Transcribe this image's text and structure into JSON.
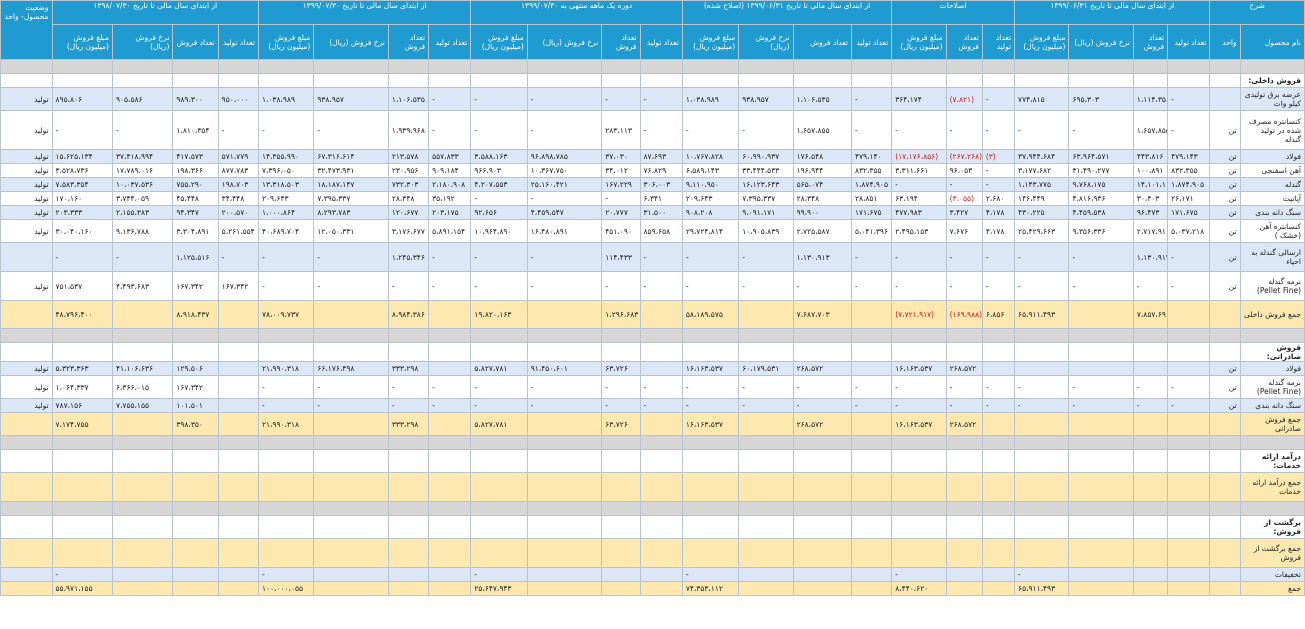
{
  "header": {
    "groups": [
      "شرح",
      "از ابتدای سال مالی تا تاریخ ۱۳۹۹/۰۶/۳۱",
      "اصلاحات",
      "از ابتدای سال مالی تا تاریخ ۱۳۹۹/۰۶/۳۱ (اصلاح شده)",
      "دوره یک ماهه منتهی به ۱۳۹۹/۰۷/۳۰",
      "از ابتدای سال مالی تا تاریخ ۱۳۹۹/۰۷/۳۰",
      "از ابتدای سال مالی تا تاریخ ۱۳۹۸/۰۷/۳۰",
      "وضعیت محصول- واحد"
    ],
    "desc_sub": [
      "نام محصول",
      "واحد"
    ],
    "period_sub": [
      "تعداد تولید",
      "تعداد فروش",
      "نرخ فروش (ریال)",
      "مبلغ فروش (میلیون ریال)"
    ],
    "adj_sub": [
      "تعداد تولید",
      "تعداد فروش",
      "مبلغ فروش (میلیون ریال)"
    ]
  },
  "rows": [
    {
      "type": "gray",
      "name": "",
      "unit": "",
      "p1": [
        "",
        "",
        "",
        ""
      ],
      "adj": [
        "",
        "",
        ""
      ],
      "p2": [
        "",
        "",
        "",
        ""
      ],
      "p3": [
        "",
        "",
        "",
        ""
      ],
      "p4": [
        "",
        "",
        "",
        ""
      ],
      "p5": [
        "",
        "",
        "",
        ""
      ],
      "status": ""
    },
    {
      "type": "section",
      "name": "فروش داخلی:",
      "unit": "",
      "p1": [
        "",
        "",
        "",
        ""
      ],
      "adj": [
        "",
        "",
        ""
      ],
      "p2": [
        "",
        "",
        "",
        ""
      ],
      "p3": [
        "",
        "",
        "",
        ""
      ],
      "p4": [
        "",
        "",
        "",
        ""
      ],
      "p5": [
        "",
        "",
        "",
        ""
      ],
      "status": ""
    },
    {
      "type": "blue",
      "h": "tall",
      "name": "عرضه برق تولیدی کیلو وات",
      "unit": "",
      "p1": [
        "-",
        "۱،۱۱۴،۳۵۶",
        "۶۹۵،۳۰۳",
        "۷۷۴،۸۱۵"
      ],
      "adj": [
        "-",
        "(۷،۸۲۱)",
        "۳۶۴،۱۷۴"
      ],
      "p2": [
        "-",
        "۱،۱۰۶،۵۳۵",
        "۹۳۸،۹۵۷",
        "۱،۰۳۸،۹۸۹"
      ],
      "p3": [
        "-",
        "-",
        "-",
        "-"
      ],
      "p4": [
        "-",
        "۱،۱۰۶،۵۳۵",
        "۹۳۸،۹۵۷",
        "۱،۰۳۸،۹۸۹"
      ],
      "p5": [
        "۹۵۰،۰۰۰",
        "۹۸۹،۳۰۰",
        "۹۰۵،۵۸۶",
        "۸۹۵،۸۰۶"
      ],
      "status": "تولید"
    },
    {
      "type": "white",
      "h": "xl",
      "name": "کنسانتره مصرف شده در تولید گندله",
      "unit": "تن",
      "p1": [
        "-",
        "۱،۶۵۷،۸۵۵",
        "-",
        "-"
      ],
      "adj": [
        "-",
        "-",
        "-"
      ],
      "p2": [
        "-",
        "۱،۶۵۷،۸۵۵",
        "-",
        "-"
      ],
      "p3": [
        "-",
        "۲۸۳،۱۱۳",
        "-",
        "-"
      ],
      "p4": [
        "-",
        "۱،۹۳۹،۹۶۸",
        "-",
        "-"
      ],
      "p5": [
        "-",
        "۱،۸۱۰،۳۵۴",
        "-",
        "-"
      ],
      "status": "تولید"
    },
    {
      "type": "blue",
      "name": "فولاد",
      "unit": "تن",
      "p1": [
        "۴۷۹،۱۴۳",
        "۴۴۳،۸۱۶",
        "۶۳،۹۶۴،۵۷۱",
        "۳۷،۹۴۴،۶۸۴"
      ],
      "adj": [
        "(۳)",
        "(۲۶۷،۲۶۸)",
        "(۱۷،۱۷۶،۸۵۶)"
      ],
      "p2": [
        "۴۷۹،۱۴۰",
        "۱۷۶،۵۴۸",
        "۶۰،۹۹۰،۹۳۷",
        "۱۰،۷۶۷،۸۲۸"
      ],
      "p3": [
        "۸۷،۶۹۳",
        "۳۷،۰۳۰",
        "۹۶،۸۹۸،۷۸۵",
        "۳،۵۸۸،۱۶۳"
      ],
      "p4": [
        "۵۵۷،۸۳۳",
        "۲۱۳،۵۷۸",
        "۶۷،۳۱۶،۶۱۴",
        "۱۴،۳۵۵،۹۹۰"
      ],
      "p5": [
        "۵۷۱،۷۷۹",
        "۴۱۷،۵۷۳",
        "۳۷،۴۱۸،۹۹۴",
        "۱۵،۶۲۵،۱۳۴"
      ],
      "status": "تولید"
    },
    {
      "type": "white",
      "name": "آهن اسفنجی",
      "unit": "تن",
      "p1": [
        "۸۳۲،۳۵۵",
        "۱۰۰،۸۹۱",
        "۳۱،۴۹۰،۲۷۷",
        "۳،۱۷۷،۶۸۲"
      ],
      "adj": [
        "-",
        "۹۶،۰۵۳",
        "۳،۳۱۱،۶۶۱"
      ],
      "p2": [
        "۸۳۲،۳۵۵",
        "۱۹۶،۹۴۴",
        "۳۳،۴۴۴،۵۳۳",
        "۶،۵۸۹،۱۴۳"
      ],
      "p3": [
        "۷۶،۸۲۹",
        "۳۴،۰۱۲",
        "۱۰،۳۶۷،۷۵۰",
        "۹۶۶،۹۰۳"
      ],
      "p4": [
        "۹۰۹،۱۸۴",
        "۲۳۰،۹۵۶",
        "۳۲،۴۷۳،۹۳۱",
        "۷،۳۹۶،۰۵۰"
      ],
      "p5": [
        "۸۷۷،۷۸۳",
        "۱۹۸،۳۶۶",
        "۱۷،۷۸۹،۰۱۶",
        "۳،۵۲۸،۷۳۶"
      ],
      "status": "تولید"
    },
    {
      "type": "blue",
      "name": "گندله",
      "unit": "تن",
      "p1": [
        "۱،۸۷۴،۹۰۵",
        "۱۴،۱۰۱،۱۱۸",
        "۹،۷۶۸،۱۷۵",
        "۱،۱۴۳،۷۷۵"
      ],
      "adj": [
        "-",
        "-",
        "-"
      ],
      "p2": [
        "۱،۸۷۴،۹۰۵",
        "۵۶۵،۰۷۴",
        "۱۶،۱۲۳،۶۴۳",
        "۹،۱۱۰،۹۵۰"
      ],
      "p3": [
        "۳۰۶،۰۰۳",
        "۱۶۷،۲۲۹",
        "۲۵،۱۶۰،۴۲۱",
        "۴،۲۰۷،۵۵۳"
      ],
      "p4": [
        "۲،۱۸۰،۹۰۸",
        "۷۳۲،۳۰۳",
        "۱۸،۱۸۷،۱۴۷",
        "۱۳،۳۱۸،۵۰۳"
      ],
      "p5": [
        "۱۹۸،۷۰۳",
        "۷۵۵،۲۹۰",
        "۱۰،۰۳۷،۵۳۶",
        "۷،۵۸۳،۳۵۴"
      ],
      "status": "تولید"
    },
    {
      "type": "white",
      "name": "آپاتیت",
      "unit": "تن",
      "p1": [
        "۲۶،۱۷۱",
        "۳۰،۴۰۳",
        "۴،۸۱۶،۹۳۶",
        "۱۴۶،۴۴۹"
      ],
      "adj": [
        "۲،۶۸۰",
        "(۳،۰۵۵)",
        "۶۳،۱۹۴"
      ],
      "p2": [
        "۲۸،۸۵۱",
        "۲۸،۳۴۸",
        "۷،۳۹۵،۳۳۷",
        "۲۰۹،۶۴۳"
      ],
      "p3": [
        "۶،۳۴۱",
        "-",
        "-",
        "-"
      ],
      "p4": [
        "۳۵،۱۹۲",
        "۲۸،۳۴۸",
        "۷،۳۹۵،۳۳۷",
        "۲۰۹،۶۴۳"
      ],
      "p5": [
        "۳۴،۴۴۸",
        "۴۵،۴۴۸",
        "۳،۷۴۴،۰۵۹",
        "۱۷۰،۱۶۰"
      ],
      "status": "تولید"
    },
    {
      "type": "blue",
      "name": "سنگ دانه بندی",
      "unit": "تن",
      "p1": [
        "۱۷۱،۶۷۵",
        "۹۶،۴۷۳",
        "۴،۴۵۹،۵۳۸",
        "۴۳۰،۲۲۵"
      ],
      "adj": [
        "۴،۱۷۸",
        "۳،۴۲۷",
        "۴۷۷،۹۸۳"
      ],
      "p2": [
        "۱۷۱،۶۷۵",
        "۹۹،۹۰۰",
        "۹،۰۹۱،۱۷۱",
        "۹۰۸،۲۰۸"
      ],
      "p3": [
        "۳۱،۵۰۰",
        "۲۰،۷۷۷",
        "۴،۴۵۹،۵۴۷",
        "۹۲،۶۵۶"
      ],
      "p4": [
        "۲۰۳،۱۷۵",
        "۱۲۰،۶۷۷",
        "۸،۲۹۳،۷۸۳",
        "۱،۰۰۰،۸۶۴"
      ],
      "p5": [
        "۲۰۰،۵۷۰",
        "۹۴،۳۴۷",
        "۲،۱۵۵،۳۸۳",
        "۲۰۳،۳۳۳"
      ],
      "status": "تولید"
    },
    {
      "type": "white",
      "h": "tall",
      "name": "کنسانتره آهن (خشک )",
      "unit": "تن",
      "p1": [
        "۵،۰۳۷،۲۱۸",
        "۲،۷۱۷،۹۱۱",
        "۹،۳۵۶،۳۳۶",
        "۲۵،۴۲۹،۶۶۳"
      ],
      "adj": [
        "۴،۱۷۸",
        "۷،۶۷۶",
        "۲،۴۹۵،۱۵۳"
      ],
      "p2": [
        "۵،۰۴۱،۳۹۶",
        "۲،۷۲۵،۵۸۷",
        "۱۰،۹۰۵،۸۳۹",
        "۲۹،۷۲۴،۸۱۴"
      ],
      "p3": [
        "۸۵۹،۶۵۸",
        "۴۵۱،۰۹۰",
        "۱۶،۴۸۰،۸۹۱",
        "۱۰،۹۶۴،۸۹۰"
      ],
      "p4": [
        "۵،۸۹۱،۱۵۴",
        "۳،۱۷۶،۶۷۷",
        "۱۲،۰۵۰،۳۳۱",
        "۴۰،۶۸۹،۷۰۴"
      ],
      "p5": [
        "۵،۲۶۱،۵۵۴",
        "۳،۳۰۴،۸۹۱",
        "۹،۱۳۶،۷۸۸",
        "۳۰،۰۴۰،۱۶۰"
      ],
      "status": "تولید"
    },
    {
      "type": "blue",
      "h": "ml",
      "name": "ارسالی گندله به احیاء",
      "unit": "تن",
      "p1": [
        "-",
        "۱،۱۳۰،۹۱۳",
        "-",
        "-"
      ],
      "adj": [
        "-",
        "-",
        "-"
      ],
      "p2": [
        "-",
        "۱،۱۳۰،۹۱۳",
        "-",
        "-"
      ],
      "p3": [
        "-",
        "۱۱۴،۴۳۳",
        "-",
        "-"
      ],
      "p4": [
        "-",
        "۱،۲۴۵،۳۴۶",
        "-",
        "-"
      ],
      "p5": [
        "-",
        "۱،۱۲۵،۵۱۶",
        "-",
        "-"
      ],
      "status": ""
    },
    {
      "type": "white",
      "h": "ml",
      "name": "نرمه گندله (Pellet Fine)",
      "unit": "تن",
      "p1": [
        "-",
        "-",
        "-",
        "-"
      ],
      "adj": [
        "-",
        "-",
        "-"
      ],
      "p2": [
        "-",
        "-",
        "-",
        "-"
      ],
      "p3": [
        "-",
        "-",
        "-",
        "-"
      ],
      "p4": [
        "-",
        "-",
        "-",
        "-"
      ],
      "p5": [
        "۱۶۷،۳۴۲",
        "۱۶۷،۳۴۲",
        "۴،۴۹۳،۶۸۳",
        "۷۵۱،۵۳۷"
      ],
      "status": "تولید"
    },
    {
      "type": "yellow",
      "h": "yl",
      "name": "جمع فروش داخلی",
      "unit": "",
      "p1": [
        "",
        "۷،۸۵۷،۶۹۱",
        "",
        "۶۵،۹۱۱،۴۹۳"
      ],
      "adj": [
        "۶،۸۵۶",
        "(۱۶۹،۹۸۸)",
        "(۷،۷۲۱،۹۱۷)"
      ],
      "p2": [
        "",
        "۷،۶۸۷،۷۰۳",
        "",
        "۵۸،۱۸۹،۵۷۵"
      ],
      "p3": [
        "",
        "۱،۲۹۶،۶۸۳",
        "",
        "۱۹،۸۲۰،۱۶۳"
      ],
      "p4": [
        "",
        "۸،۹۸۴،۳۸۶",
        "",
        "۷۸،۰۰۹،۷۳۷"
      ],
      "p5": [
        "",
        "۸،۹۱۸،۴۳۷",
        "",
        "۴۸،۷۹۶،۴۰۰"
      ],
      "status": ""
    },
    {
      "type": "gray",
      "name": "",
      "unit": "",
      "p1": [
        "",
        "",
        "",
        ""
      ],
      "adj": [
        "",
        "",
        ""
      ],
      "p2": [
        "",
        "",
        "",
        ""
      ],
      "p3": [
        "",
        "",
        "",
        ""
      ],
      "p4": [
        "",
        "",
        "",
        ""
      ],
      "p5": [
        "",
        "",
        "",
        ""
      ],
      "status": ""
    },
    {
      "type": "section2",
      "name": "فروش صادراتی:",
      "unit": "",
      "p1": [
        "",
        "",
        "",
        ""
      ],
      "adj": [
        "",
        "",
        ""
      ],
      "p2": [
        "",
        "",
        "",
        ""
      ],
      "p3": [
        "",
        "",
        "",
        ""
      ],
      "p4": [
        "",
        "",
        "",
        ""
      ],
      "p5": [
        "",
        "",
        "",
        ""
      ],
      "status": ""
    },
    {
      "type": "blue",
      "name": "فولاد",
      "unit": "تن",
      "p1": [
        "",
        "",
        "",
        ""
      ],
      "adj": [
        "",
        "۲۶۸،۵۷۲",
        "۱۶،۱۶۳،۵۳۷"
      ],
      "p2": [
        "",
        "۲۶۸،۵۷۲",
        "۶۰،۱۷۹،۵۳۱",
        "۱۶،۱۶۳،۵۳۷"
      ],
      "p3": [
        "",
        "۶۳،۷۲۶",
        "۹۱،۴۵۰،۶۰۱",
        "۵،۸۲۷،۷۸۱"
      ],
      "p4": [
        "",
        "۳۳۳،۲۹۸",
        "۶۶،۱۷۶،۴۹۸",
        "۲۱،۹۹۰،۳۱۸"
      ],
      "p5": [
        "",
        "۱۲۹،۵۰۶",
        "۴۱،۱۰۶،۶۳۶",
        "۵،۳۲۳،۳۶۳"
      ],
      "status": "تولید"
    },
    {
      "type": "white",
      "h": "tall",
      "name": "نرمه گندله (Pellet Fine)",
      "unit": "تن",
      "p1": [
        "-",
        "-",
        "-",
        "-"
      ],
      "adj": [
        "-",
        "-",
        "-"
      ],
      "p2": [
        "-",
        "-",
        "-",
        "-"
      ],
      "p3": [
        "-",
        "-",
        "-",
        "-"
      ],
      "p4": [
        "-",
        "-",
        "-",
        "-"
      ],
      "p5": [
        "",
        "۱۶۷،۳۴۲",
        "۶،۳۶۶،۰۱۵",
        "۱،۰۶۴،۳۳۷"
      ],
      "status": "تولید"
    },
    {
      "type": "blue",
      "name": "سنگ دانه بندی",
      "unit": "تن",
      "p1": [
        "-",
        "-",
        "-",
        "-"
      ],
      "adj": [
        "-",
        "-",
        "-"
      ],
      "p2": [
        "-",
        "-",
        "-",
        "-"
      ],
      "p3": [
        "-",
        "-",
        "-",
        "-"
      ],
      "p4": [
        "-",
        "-",
        "-",
        "-"
      ],
      "p5": [
        "",
        "۱۰۱،۵۰۱",
        "۷،۷۵۵،۱۵۵",
        "۷۸۷،۱۵۶"
      ],
      "status": "تولید"
    },
    {
      "type": "yellow",
      "h": "tall",
      "name": "جمع فروش صادراتی",
      "unit": "",
      "p1": [
        "",
        "",
        "",
        ""
      ],
      "adj": [
        "",
        "۲۶۸،۵۷۲",
        "۱۶،۱۶۳،۵۳۷"
      ],
      "p2": [
        "",
        "۲۶۸،۵۷۲",
        "",
        "۱۶،۱۶۳،۵۳۷"
      ],
      "p3": [
        "",
        "۶۳،۷۲۶",
        "",
        "۵،۸۲۷،۷۸۱"
      ],
      "p4": [
        "",
        "۳۳۳،۲۹۸",
        "",
        "۲۱،۹۹۰،۳۱۸"
      ],
      "p5": [
        "",
        "۳۹۸،۳۵۰",
        "",
        "۷،۱۷۴،۷۵۵"
      ],
      "status": ""
    },
    {
      "type": "gray",
      "name": "",
      "unit": "",
      "p1": [
        "",
        "",
        "",
        ""
      ],
      "adj": [
        "",
        "",
        ""
      ],
      "p2": [
        "",
        "",
        "",
        ""
      ],
      "p3": [
        "",
        "",
        "",
        ""
      ],
      "p4": [
        "",
        "",
        "",
        ""
      ],
      "p5": [
        "",
        "",
        "",
        ""
      ],
      "status": ""
    },
    {
      "type": "section3",
      "h": "tall",
      "name": "درآمد ارائه خدمات:",
      "unit": "",
      "p1": [
        "",
        "",
        "",
        ""
      ],
      "adj": [
        "",
        "",
        ""
      ],
      "p2": [
        "",
        "",
        "",
        ""
      ],
      "p3": [
        "",
        "",
        "",
        ""
      ],
      "p4": [
        "",
        "",
        "",
        ""
      ],
      "p5": [
        "",
        "",
        "",
        ""
      ],
      "status": ""
    },
    {
      "type": "yellow",
      "h": "ml",
      "name": "جمع درآمد ارائه خدمات",
      "unit": "",
      "p1": [
        "",
        "",
        "",
        ""
      ],
      "adj": [
        "",
        "",
        ""
      ],
      "p2": [
        "",
        "",
        "",
        ""
      ],
      "p3": [
        "",
        "",
        "",
        ""
      ],
      "p4": [
        "",
        "",
        "",
        ""
      ],
      "p5": [
        "",
        "",
        "",
        ""
      ],
      "status": ""
    },
    {
      "type": "gray",
      "name": "",
      "unit": "",
      "p1": [
        "",
        "",
        "",
        ""
      ],
      "adj": [
        "",
        "",
        ""
      ],
      "p2": [
        "",
        "",
        "",
        ""
      ],
      "p3": [
        "",
        "",
        "",
        ""
      ],
      "p4": [
        "",
        "",
        "",
        ""
      ],
      "p5": [
        "",
        "",
        "",
        ""
      ],
      "status": ""
    },
    {
      "type": "section4",
      "h": "tall",
      "name": "برگشت از فروش:",
      "unit": "",
      "p1": [
        "",
        "",
        "",
        ""
      ],
      "adj": [
        "",
        "",
        ""
      ],
      "p2": [
        "",
        "",
        "",
        ""
      ],
      "p3": [
        "",
        "",
        "",
        ""
      ],
      "p4": [
        "",
        "",
        "",
        ""
      ],
      "p5": [
        "",
        "",
        "",
        ""
      ],
      "status": ""
    },
    {
      "type": "yellow",
      "h": "ml",
      "name": "جمع برگشت از فروش",
      "unit": "",
      "p1": [
        "",
        "",
        "",
        ""
      ],
      "adj": [
        "",
        "",
        ""
      ],
      "p2": [
        "",
        "",
        "",
        ""
      ],
      "p3": [
        "",
        "",
        "",
        ""
      ],
      "p4": [
        "",
        "",
        "",
        ""
      ],
      "p5": [
        "",
        "",
        "",
        ""
      ],
      "status": ""
    },
    {
      "type": "blue",
      "name": "تخفیفات",
      "unit": "",
      "p1": [
        "",
        "",
        "",
        "-"
      ],
      "adj": [
        "",
        "",
        "-"
      ],
      "p2": [
        "",
        "",
        "",
        "-"
      ],
      "p3": [
        "",
        "",
        "",
        "-"
      ],
      "p4": [
        "",
        "",
        "",
        "-"
      ],
      "p5": [
        "",
        "",
        "",
        "-"
      ],
      "status": ""
    },
    {
      "type": "yellow",
      "name": "جمع",
      "unit": "",
      "p1": [
        "",
        "",
        "",
        "۶۵،۹۱۱،۴۹۳"
      ],
      "adj": [
        "",
        "",
        "۸،۴۴۰،۶۲۰"
      ],
      "p2": [
        "",
        "",
        "",
        "۷۴،۳۵۳،۱۱۲"
      ],
      "p3": [
        "",
        "",
        "",
        "۲۵،۶۴۷،۹۴۳"
      ],
      "p4": [
        "",
        "",
        "",
        "۱۰۰،۰۰۰،۰۵۵"
      ],
      "p5": [
        "",
        "",
        "",
        "۵۵،۹۷۱،۱۵۵"
      ],
      "status": ""
    }
  ]
}
